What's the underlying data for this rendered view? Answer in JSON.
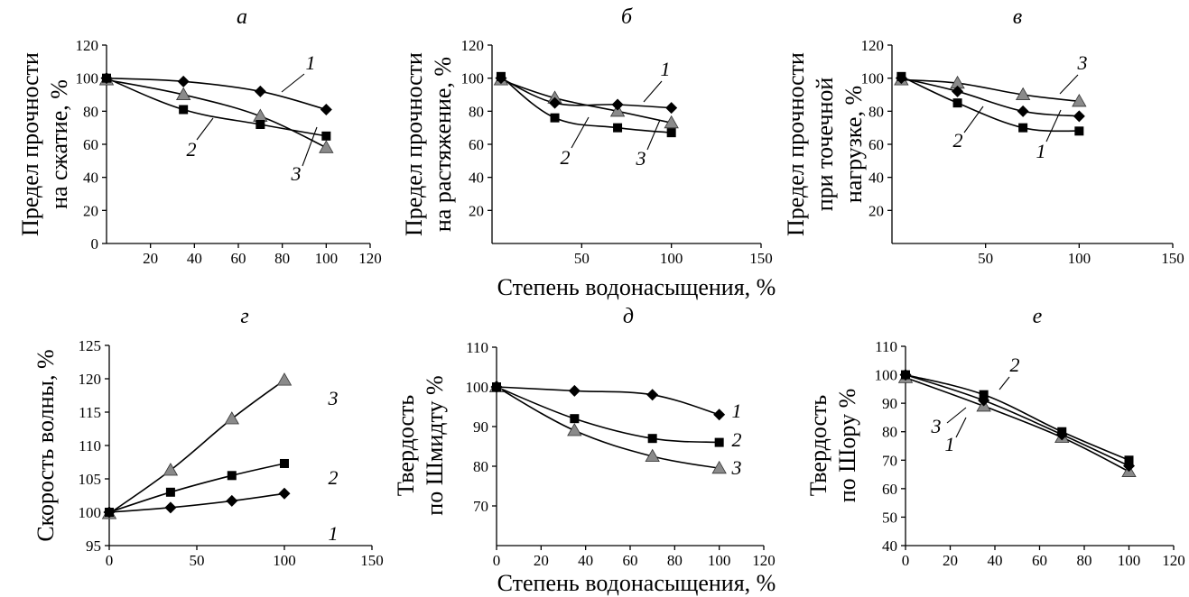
{
  "figure": {
    "xlabel_top": "Степень водонасыщения, %",
    "xlabel_bottom": "Степень водонасыщения, %",
    "colors": {
      "marker_series_1": "#000000",
      "marker_series_2": "#000000",
      "marker_series_3": "#8a8a8a",
      "line": "#000000"
    },
    "marker_shapes": {
      "1": "diamond",
      "2": "square",
      "3": "triangle"
    }
  },
  "chart_data": [
    {
      "type": "line",
      "panel": "а",
      "ylabel": [
        "Предел прочности",
        "на сжатие, %"
      ],
      "xlim": [
        0,
        120
      ],
      "ylim": [
        0,
        120
      ],
      "xticks": [
        "20",
        "40",
        "60",
        "80",
        "100",
        "120"
      ],
      "yticks": [
        "0",
        "20",
        "40",
        "60",
        "80",
        "100",
        "120"
      ],
      "series": [
        {
          "name": "1",
          "x": [
            0,
            35,
            70,
            100
          ],
          "y": [
            100,
            98,
            92,
            81
          ]
        },
        {
          "name": "2",
          "x": [
            0,
            35,
            70,
            100
          ],
          "y": [
            100,
            81,
            72,
            65
          ]
        },
        {
          "name": "3",
          "x": [
            0,
            35,
            70,
            100
          ],
          "y": [
            99,
            90,
            77,
            58
          ]
        }
      ]
    },
    {
      "type": "line",
      "panel": "б",
      "ylabel": [
        "Предел прочности",
        "на растяжение, %"
      ],
      "xlim": [
        0,
        150
      ],
      "ylim": [
        0,
        120
      ],
      "xticks": [
        "50",
        "100",
        "150"
      ],
      "yticks": [
        "20",
        "40",
        "60",
        "80",
        "100",
        "120"
      ],
      "series": [
        {
          "name": "1",
          "x": [
            5,
            35,
            70,
            100
          ],
          "y": [
            100,
            85,
            84,
            82
          ]
        },
        {
          "name": "2",
          "x": [
            5,
            35,
            70,
            100
          ],
          "y": [
            101,
            76,
            70,
            67
          ]
        },
        {
          "name": "3",
          "x": [
            5,
            35,
            70,
            100
          ],
          "y": [
            99,
            88,
            80,
            73
          ]
        }
      ]
    },
    {
      "type": "line",
      "panel": "в",
      "ylabel": [
        "Предел прочности",
        "при точечной",
        "нагрузке, %"
      ],
      "xlim": [
        0,
        150
      ],
      "ylim": [
        0,
        120
      ],
      "xticks": [
        "50",
        "100",
        "150"
      ],
      "yticks": [
        "20",
        "40",
        "60",
        "80",
        "100",
        "120"
      ],
      "series": [
        {
          "name": "1",
          "x": [
            5,
            35,
            70,
            100
          ],
          "y": [
            100,
            92,
            80,
            77
          ]
        },
        {
          "name": "2",
          "x": [
            5,
            35,
            70,
            100
          ],
          "y": [
            101,
            85,
            70,
            68
          ]
        },
        {
          "name": "3",
          "x": [
            5,
            35,
            70,
            100
          ],
          "y": [
            99,
            97,
            90,
            86
          ]
        }
      ]
    },
    {
      "type": "line",
      "panel": "г",
      "ylabel": [
        "Скорость волны, %"
      ],
      "xlim": [
        0,
        150
      ],
      "ylim": [
        95,
        125
      ],
      "xticks": [
        "0",
        "50",
        "100",
        "150"
      ],
      "yticks": [
        "95",
        "100",
        "105",
        "110",
        "115",
        "120",
        "125"
      ],
      "series": [
        {
          "name": "1",
          "x": [
            0,
            35,
            70,
            100
          ],
          "y": [
            100,
            100.7,
            101.7,
            102.8
          ]
        },
        {
          "name": "2",
          "x": [
            0,
            35,
            70,
            100
          ],
          "y": [
            100,
            103,
            105.5,
            107.3
          ]
        },
        {
          "name": "3",
          "x": [
            0,
            35,
            70,
            100
          ],
          "y": [
            99.8,
            106.3,
            114,
            119.8
          ]
        }
      ]
    },
    {
      "type": "line",
      "panel": "д",
      "ylabel": [
        "Твердость",
        "по Шмидту %"
      ],
      "xlim": [
        0,
        120
      ],
      "ylim": [
        60,
        110
      ],
      "xticks": [
        "0",
        "20",
        "40",
        "60",
        "80",
        "100",
        "120"
      ],
      "yticks": [
        "70",
        "80",
        "90",
        "100",
        "110"
      ],
      "series": [
        {
          "name": "1",
          "x": [
            0,
            35,
            70,
            100
          ],
          "y": [
            100,
            99,
            98,
            93
          ]
        },
        {
          "name": "2",
          "x": [
            0,
            35,
            70,
            100
          ],
          "y": [
            100,
            92,
            87,
            86
          ]
        },
        {
          "name": "3",
          "x": [
            0,
            35,
            70,
            100
          ],
          "y": [
            100,
            89,
            82.5,
            79.5
          ]
        }
      ]
    },
    {
      "type": "line",
      "panel": "е",
      "ylabel": [
        "Твердость",
        "по Шору %"
      ],
      "xlim": [
        0,
        120
      ],
      "ylim": [
        40,
        110
      ],
      "xticks": [
        "0",
        "20",
        "40",
        "60",
        "80",
        "100",
        "120"
      ],
      "yticks": [
        "40",
        "50",
        "60",
        "70",
        "80",
        "90",
        "100",
        "110"
      ],
      "series": [
        {
          "name": "1",
          "x": [
            0,
            35,
            70,
            100
          ],
          "y": [
            100,
            91,
            79,
            68
          ]
        },
        {
          "name": "2",
          "x": [
            0,
            35,
            70,
            100
          ],
          "y": [
            100,
            93,
            80,
            70
          ]
        },
        {
          "name": "3",
          "x": [
            0,
            35,
            70,
            100
          ],
          "y": [
            99,
            89,
            78,
            66
          ]
        }
      ]
    }
  ]
}
